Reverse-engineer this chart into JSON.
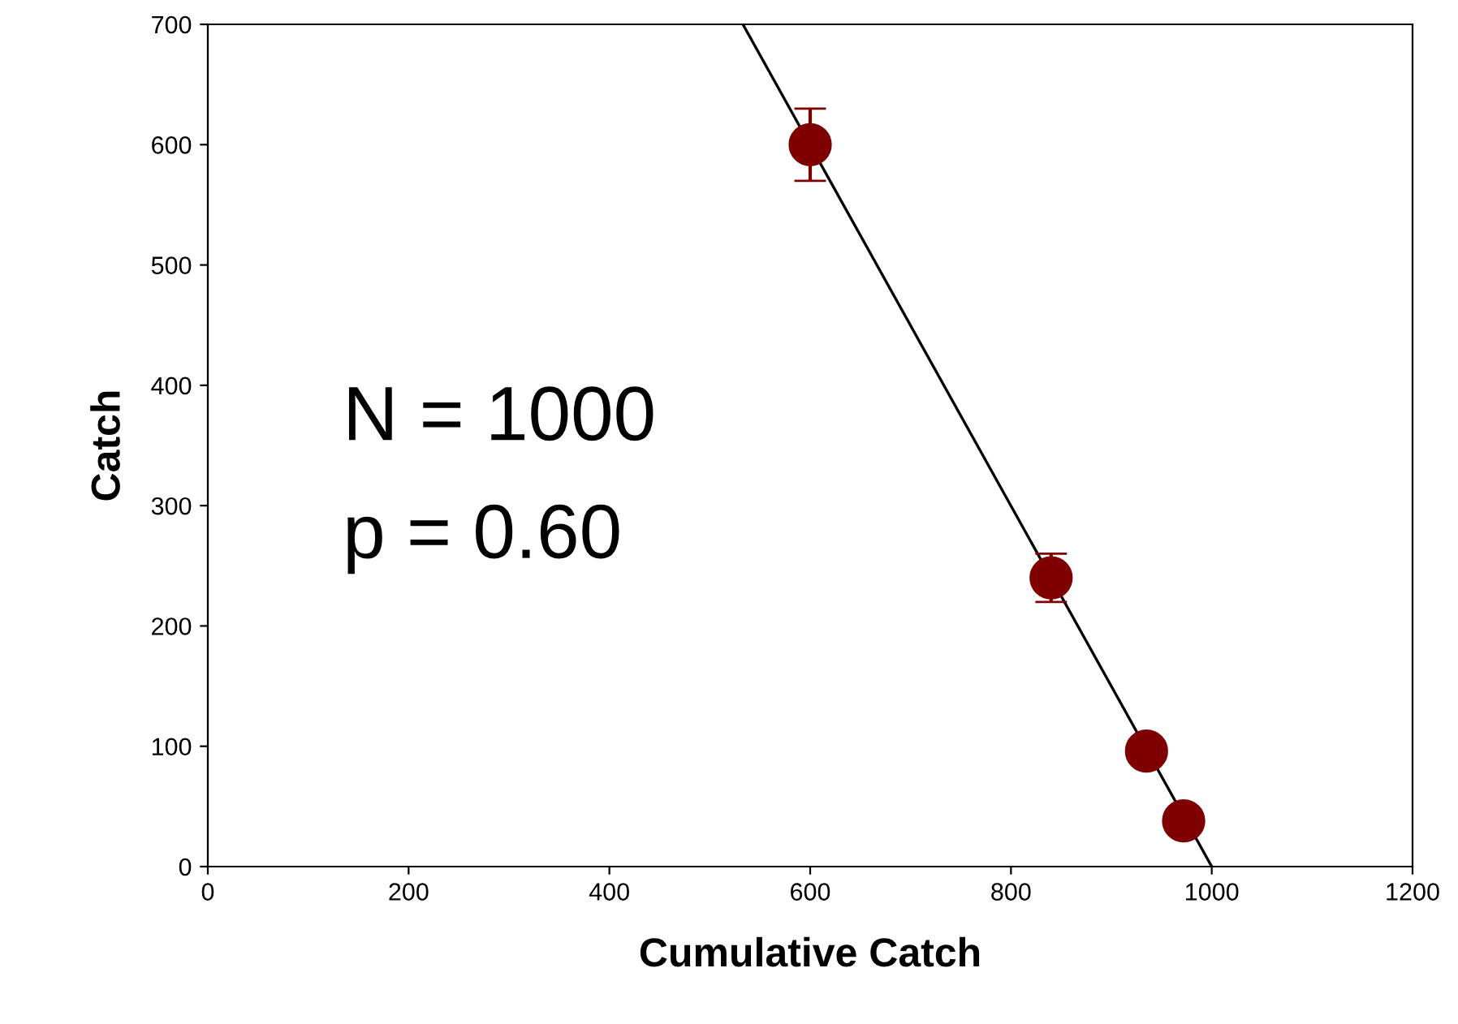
{
  "chart_data": {
    "type": "scatter",
    "xlabel": "Cumulative Catch",
    "ylabel": "Catch",
    "series": [
      {
        "color": "#7f0000",
        "x": [
          600,
          840,
          935,
          972
        ],
        "values": [
          600,
          240,
          96,
          38
        ],
        "errors": [
          30,
          20,
          null,
          null
        ],
        "marker": "circle"
      },
      {
        "type": "line",
        "color": "#000000",
        "x": [
          533,
          1000
        ],
        "values": [
          700,
          0
        ],
        "marker": "none",
        "line_style": "solid"
      }
    ],
    "annotations": [
      "N = 1000",
      "p = 0.60"
    ],
    "xlim": [
      0,
      1200
    ],
    "xticks": [
      0,
      200,
      400,
      600,
      800,
      1000,
      1200
    ],
    "ylim": [
      0,
      700
    ],
    "yticks": [
      0,
      100,
      200,
      300,
      400,
      500,
      600,
      700
    ],
    "grid": false,
    "legend": false
  }
}
